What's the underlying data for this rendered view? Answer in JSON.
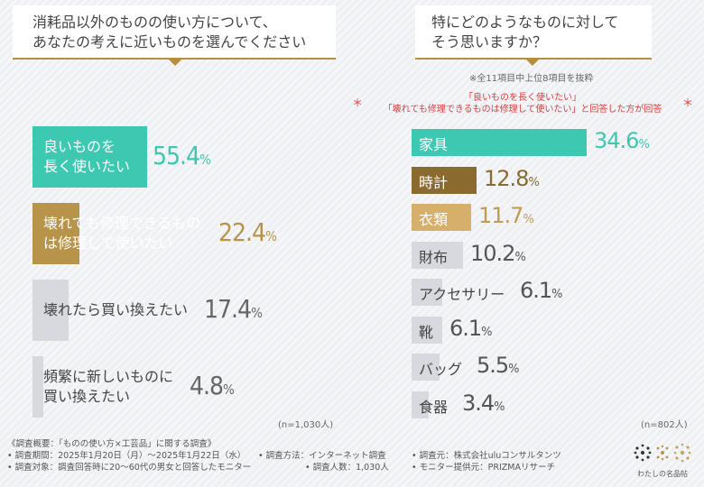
{
  "question_left": {
    "line1": "消耗品以外のものの使い方について、",
    "line2": "あなたの考えに近いものを選んでください"
  },
  "question_right": {
    "line1": "特にどのようなものに対して",
    "line2": "そう思いますか？"
  },
  "note_top": "※全11項目中上位8項目を抜粋",
  "note_condition": {
    "line1": "「良いものを長く使いたい」",
    "line2": "「壊れても修理できるものは修理して使いたい」と回答した方が回答",
    "star": "＊"
  },
  "chart_data": [
    {
      "type": "bar",
      "orientation": "horizontal",
      "categories": [
        [
          "良いものを",
          "長く使いたい"
        ],
        [
          "壊れても修理できるもの",
          "は修理して使いたい"
        ],
        [
          "壊れたら買い換えたい"
        ],
        [
          "頻繁に新しいものに",
          "買い換えたい"
        ]
      ],
      "values": [
        55.4,
        22.4,
        17.4,
        4.8
      ],
      "value_labels": [
        "55.4",
        "22.4",
        "17.4",
        "4.8"
      ],
      "unit": "%",
      "n_label": "(n=1,030人)",
      "colors": [
        "#3dc8b1",
        "#b8934a",
        "#d7d9de",
        "#d7d9de"
      ]
    },
    {
      "type": "bar",
      "orientation": "horizontal",
      "categories": [
        "家具",
        "時計",
        "衣類",
        "財布",
        "アクセサリー",
        "靴",
        "バッグ",
        "食器"
      ],
      "values": [
        34.6,
        12.8,
        11.7,
        10.2,
        6.1,
        6.1,
        5.5,
        3.4
      ],
      "value_labels": [
        "34.6",
        "12.8",
        "11.7",
        "10.2",
        "6.1",
        "6.1",
        "5.5",
        "3.4"
      ],
      "unit": "%",
      "n_label": "(n=802人)",
      "colors": [
        "#3dc8b1",
        "#8a6a2e",
        "#d6b06a",
        "#d7d9de",
        "#d7d9de",
        "#d7d9de",
        "#d7d9de",
        "#d7d9de"
      ]
    }
  ],
  "footer": {
    "title": "《調査概要：「ものの使い方×工芸品」に関する調査》",
    "period": "• 調査期間：2025年1月20日（月）〜2025年1月22日（水）",
    "method": "• 調査方法：インターネット調査",
    "organizer": "• 調査元：株式会社uluコンサルタンツ",
    "target": "• 調査対象：調査回答時に20〜60代の男女と回答したモニター",
    "count": "• 調査人数：1,030人",
    "provider": "• モニター提供元：PRIZMAリサーチ"
  },
  "logo_text": "わたしの名品帖"
}
